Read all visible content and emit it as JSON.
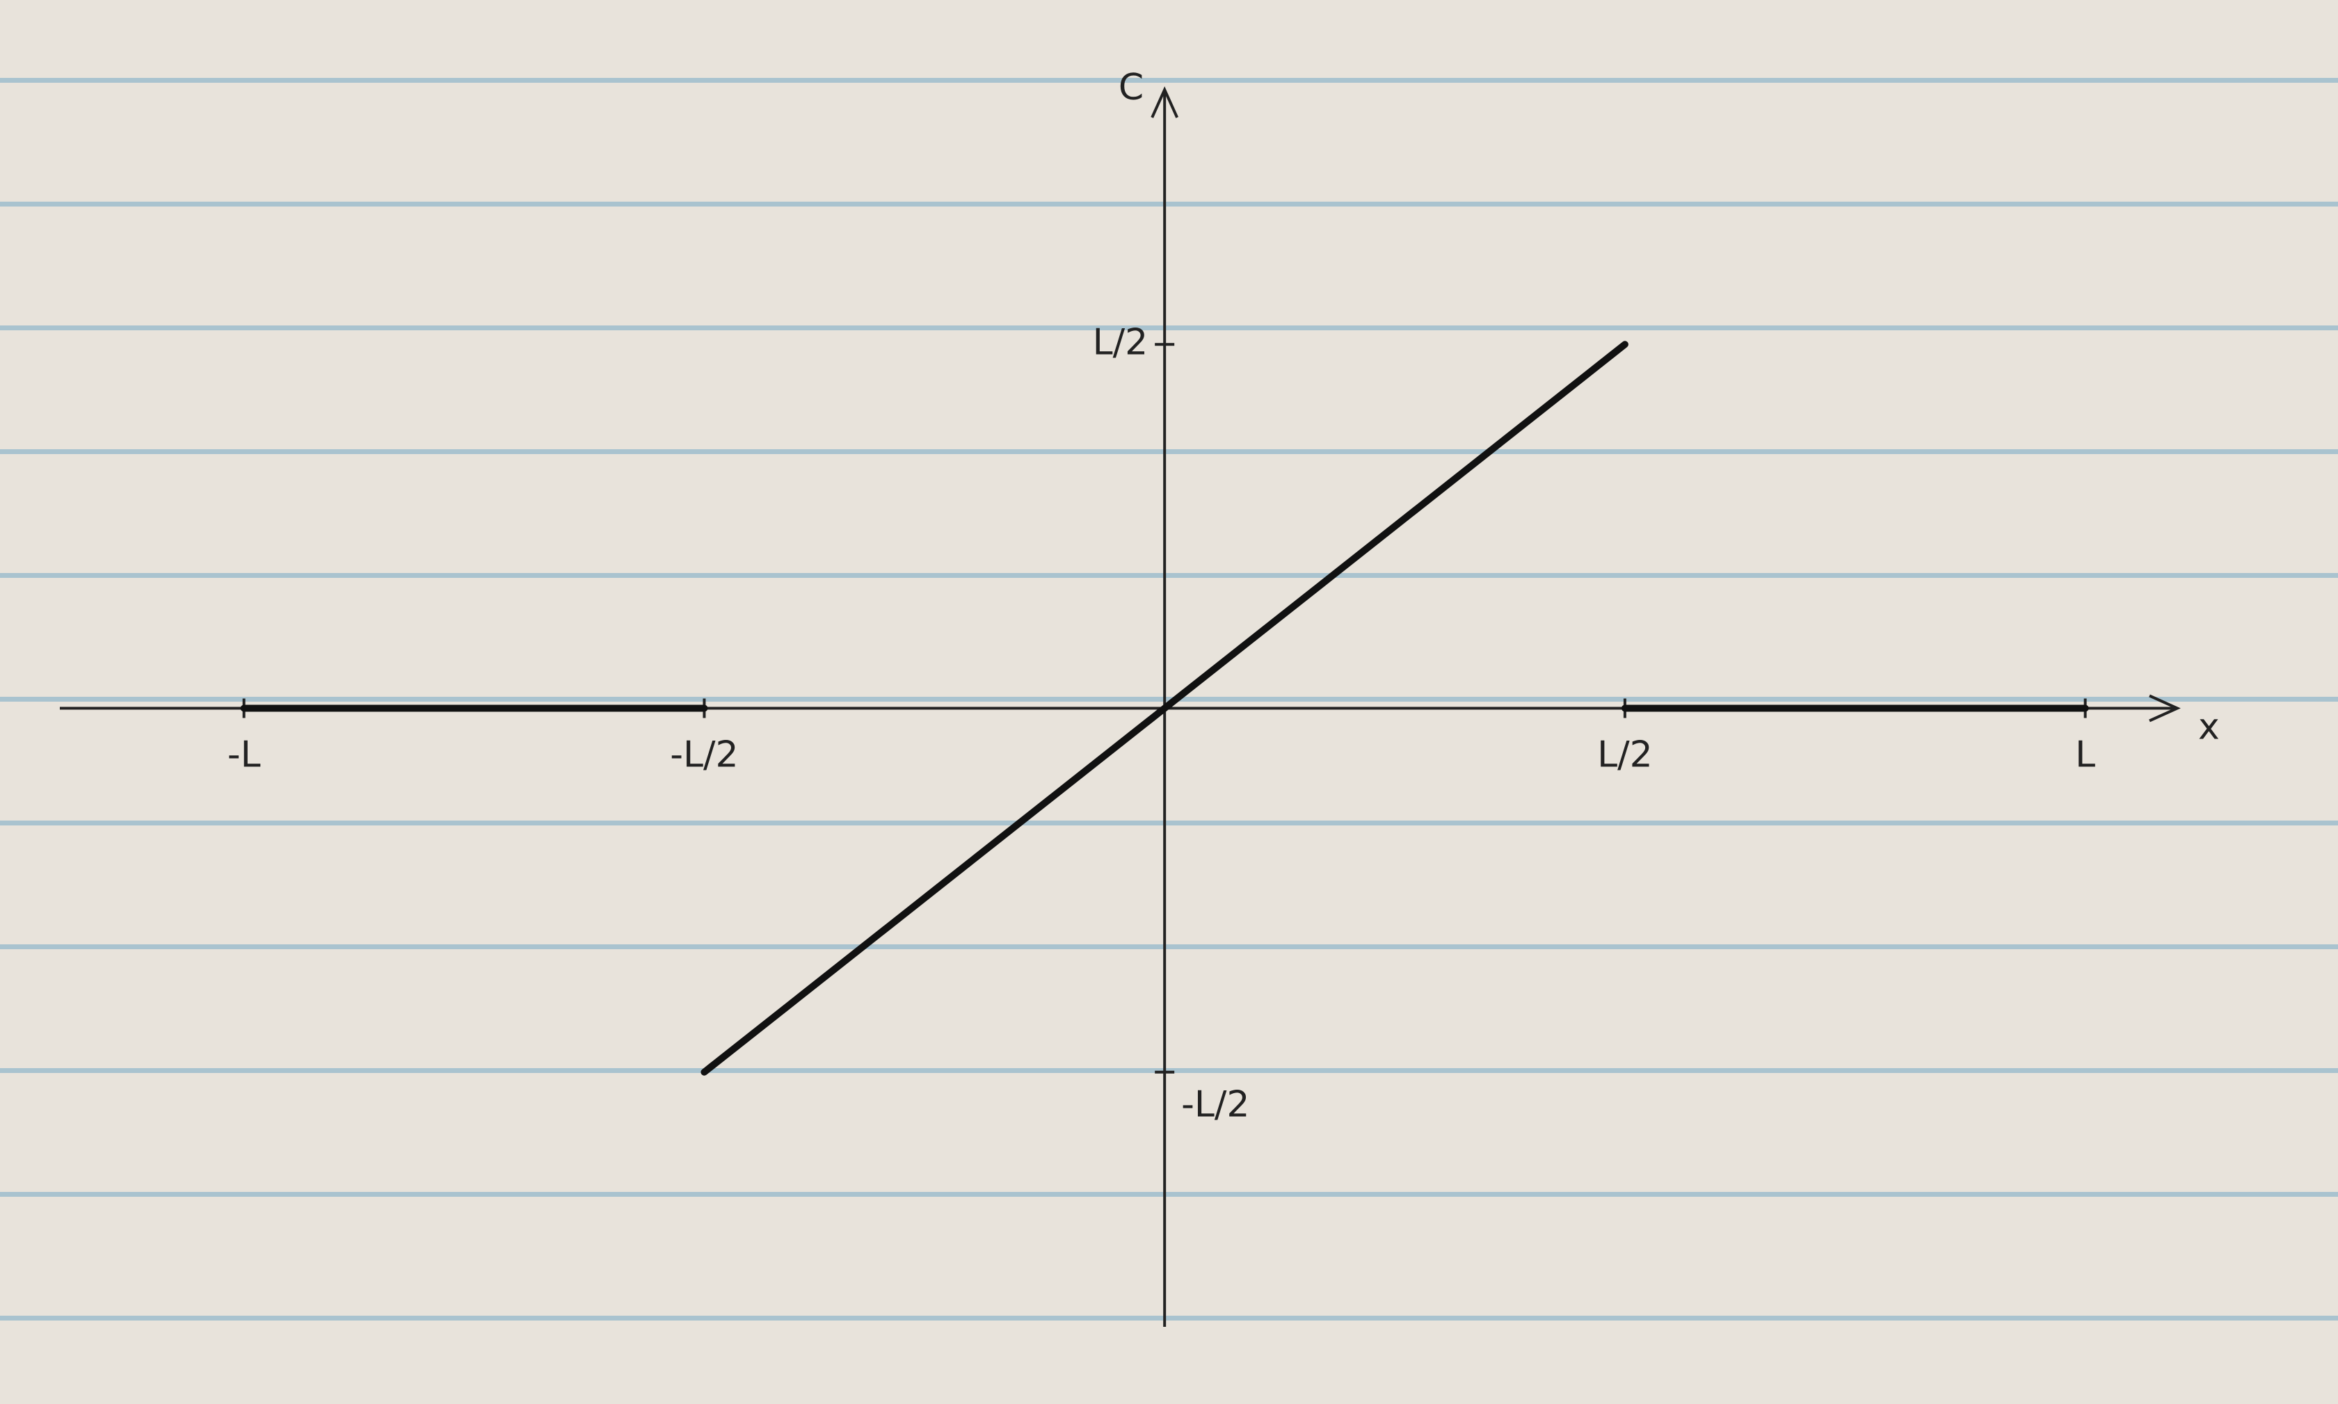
{
  "chart_data": {
    "type": "line",
    "y_label": "C",
    "x_label": "x",
    "x": [
      -1,
      -0.5,
      -0.5,
      -0.5,
      0.5,
      0.5,
      0.5,
      1
    ],
    "series": [
      {
        "color": "#111111",
        "values": [
          0,
          0,
          null,
          -0.5,
          0.5,
          null,
          0,
          0
        ]
      }
    ],
    "xlim": [
      -1.2,
      1.1
    ],
    "ylim": [
      -0.85,
      0.85
    ],
    "xticks": [
      {
        "value": -1,
        "label": "-L"
      },
      {
        "value": -0.5,
        "label": "-L/2"
      },
      {
        "value": 0.5,
        "label": "L/2"
      },
      {
        "value": 1,
        "label": "L"
      }
    ],
    "yticks": [
      {
        "value": 0.5,
        "label": "L/2"
      },
      {
        "value": -0.5,
        "label": "-L/2"
      }
    ]
  }
}
